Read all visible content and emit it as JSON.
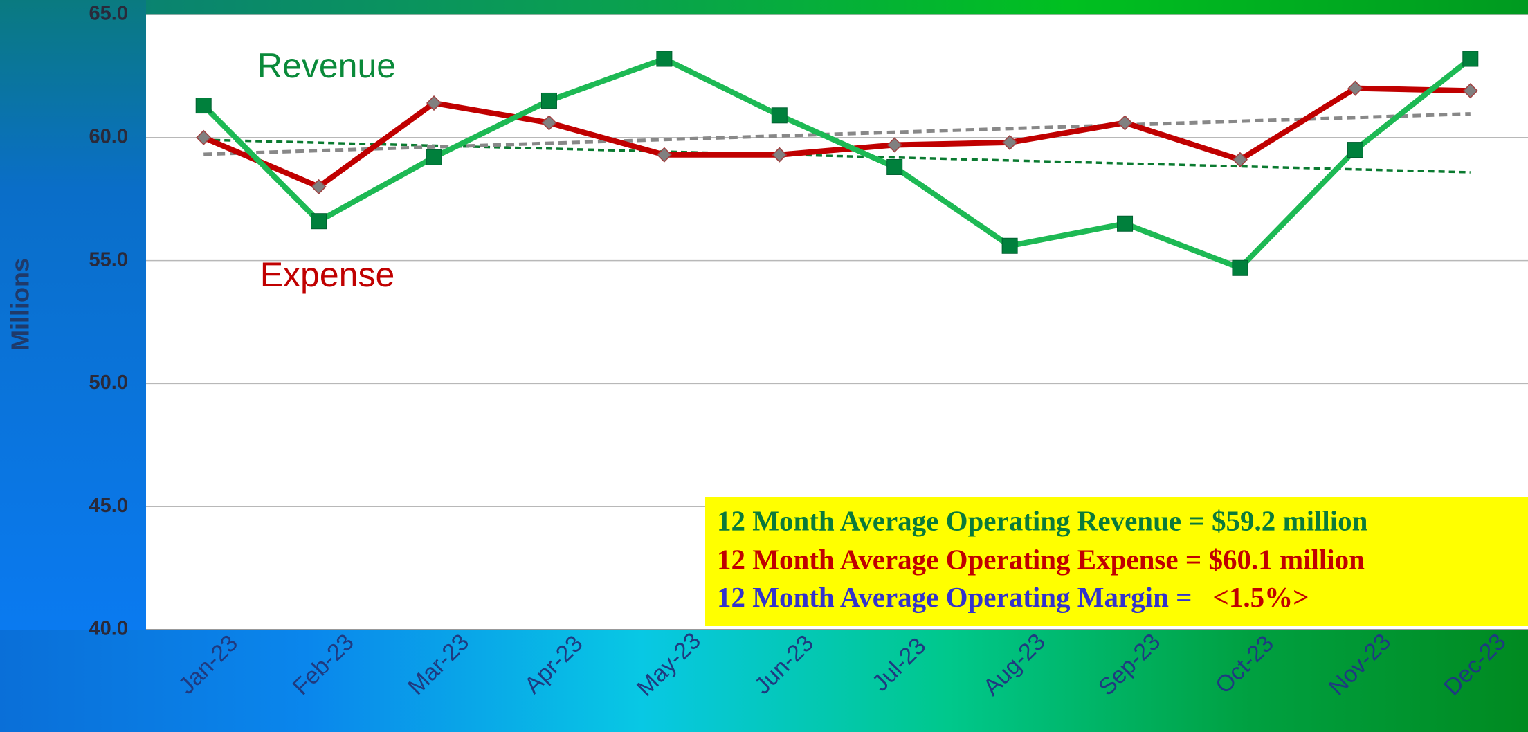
{
  "chart_data": {
    "type": "line",
    "categories": [
      "Jan-23",
      "Feb-23",
      "Mar-23",
      "Apr-23",
      "May-23",
      "Jun-23",
      "Jul-23",
      "Aug-23",
      "Sep-23",
      "Oct-23",
      "Nov-23",
      "Dec-23"
    ],
    "series": [
      {
        "name": "Revenue",
        "color": "#1db954",
        "marker": "square",
        "trendline": true,
        "values": [
          61.3,
          56.6,
          59.2,
          61.5,
          63.2,
          60.9,
          58.8,
          55.6,
          56.5,
          54.7,
          59.5,
          63.2
        ]
      },
      {
        "name": "Expense",
        "color": "#c00000",
        "marker": "diamond",
        "trendline": true,
        "values": [
          60.0,
          58.0,
          61.4,
          60.6,
          59.3,
          59.3,
          59.7,
          59.8,
          60.6,
          59.1,
          62.0,
          61.9
        ]
      }
    ],
    "y_label": "Millions",
    "ylim": [
      40,
      65
    ],
    "yticks": [
      {
        "value": 40,
        "label": "40.0"
      },
      {
        "value": 45,
        "label": "45.0"
      },
      {
        "value": 50,
        "label": "50.0"
      },
      {
        "value": 55,
        "label": "55.0"
      },
      {
        "value": 60,
        "label": "60.0"
      },
      {
        "value": 65,
        "label": "65.0"
      }
    ],
    "grid": true,
    "annotation": {
      "revenue": "12 Month Average Operating Revenue = $59.2 million",
      "expense": "12 Month Average Operating Expense =  $60.1 million",
      "margin_label": "12 Month Average Operating Margin =",
      "margin_value": "<1.5%>"
    }
  }
}
